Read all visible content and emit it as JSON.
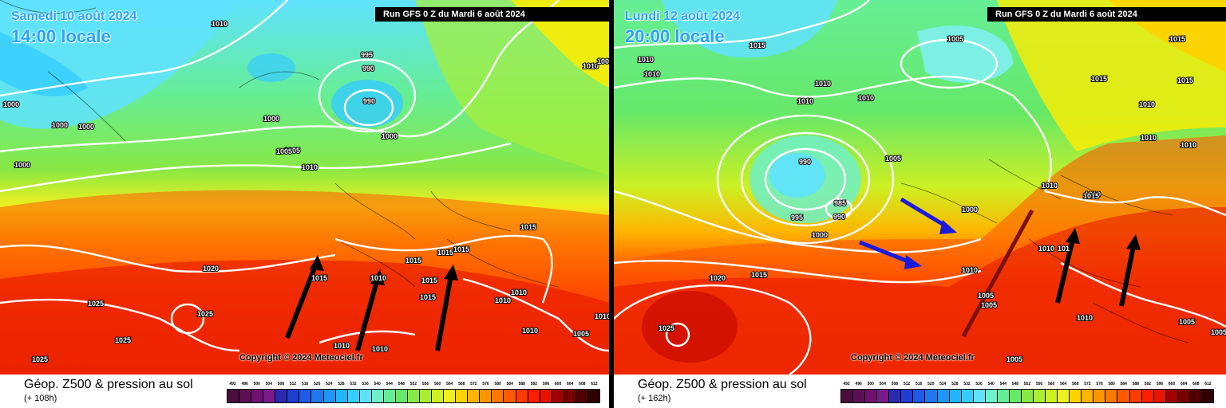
{
  "colors": {
    "scale": [
      "#4b0d3d",
      "#5d0f55",
      "#701070",
      "#7a1a8c",
      "#3c1a8e",
      "#2a2ab0",
      "#1f3fd0",
      "#1e5ae8",
      "#1f78f0",
      "#1e96f8",
      "#22b4ff",
      "#35ccff",
      "#5fe2ff",
      "#80f0f0",
      "#6ef0c8",
      "#66ee96",
      "#66e868",
      "#88e844",
      "#aaee33",
      "#ccf022",
      "#eef01f",
      "#ffec00",
      "#ffd200",
      "#ffb400",
      "#ff9600",
      "#ff7800",
      "#ff5a00",
      "#ff3c00",
      "#ff1e00",
      "#e61400",
      "#c80a00",
      "#a00000",
      "#780000",
      "#500000",
      "#300000"
    ],
    "arrow_black": "#000000",
    "arrow_blue": "#1a1adc",
    "arrow_brown": "#7a1010"
  },
  "panels": [
    {
      "date": "Samedi 10 août 2024",
      "time": "14:00 locale",
      "run": "Run GFS 0 Z du Mardi 6 août 2024",
      "copyright": "Copyright © 2024 Meteociel.fr",
      "footer_title": "Géop. Z500 & pression au sol",
      "footer_lead": "(+ 108h)",
      "isobar_labels": [
        "1010",
        "1005",
        "1000",
        "1000",
        "1000",
        "1000",
        "995",
        "990",
        "990",
        "1000",
        "1005",
        "1010",
        "1010",
        "1005",
        "1000",
        "1015",
        "1015",
        "1015",
        "1015",
        "1015",
        "1015",
        "1015",
        "1020",
        "1025",
        "1025",
        "1025",
        "1025",
        "1010",
        "1010",
        "1010",
        "1010",
        "1010",
        "1010",
        "1005",
        "1010"
      ]
    },
    {
      "date": "Lundi 12 août 2024",
      "time": "20:00 locale",
      "run": "Run GFS 0 Z du Mardi 6 août 2024",
      "copyright": "Copyright © 2024 Meteociel.fr",
      "footer_title": "Géop. Z500 & pression au sol",
      "footer_lead": "(+ 162h)",
      "isobar_labels": [
        "1010",
        "1010",
        "1015",
        "1005",
        "1015",
        "1010",
        "1010",
        "1010",
        "1005",
        "1015",
        "1010",
        "990",
        "985",
        "995",
        "990",
        "1000",
        "1000",
        "1010",
        "1020",
        "1015",
        "1025",
        "1010",
        "1010",
        "1015",
        "1010",
        "101",
        "1005",
        "1005",
        "1005",
        "1010",
        "1005",
        "1005",
        "1010",
        "1015",
        "1010"
      ]
    }
  ],
  "scale_labels": [
    "492",
    "496",
    "500",
    "504",
    "508",
    "512",
    "516",
    "520",
    "524",
    "528",
    "532",
    "536",
    "540",
    "544",
    "548",
    "552",
    "556",
    "560",
    "564",
    "568",
    "572",
    "576",
    "580",
    "584",
    "588",
    "592",
    "596",
    "600",
    "604",
    "608",
    "612"
  ]
}
